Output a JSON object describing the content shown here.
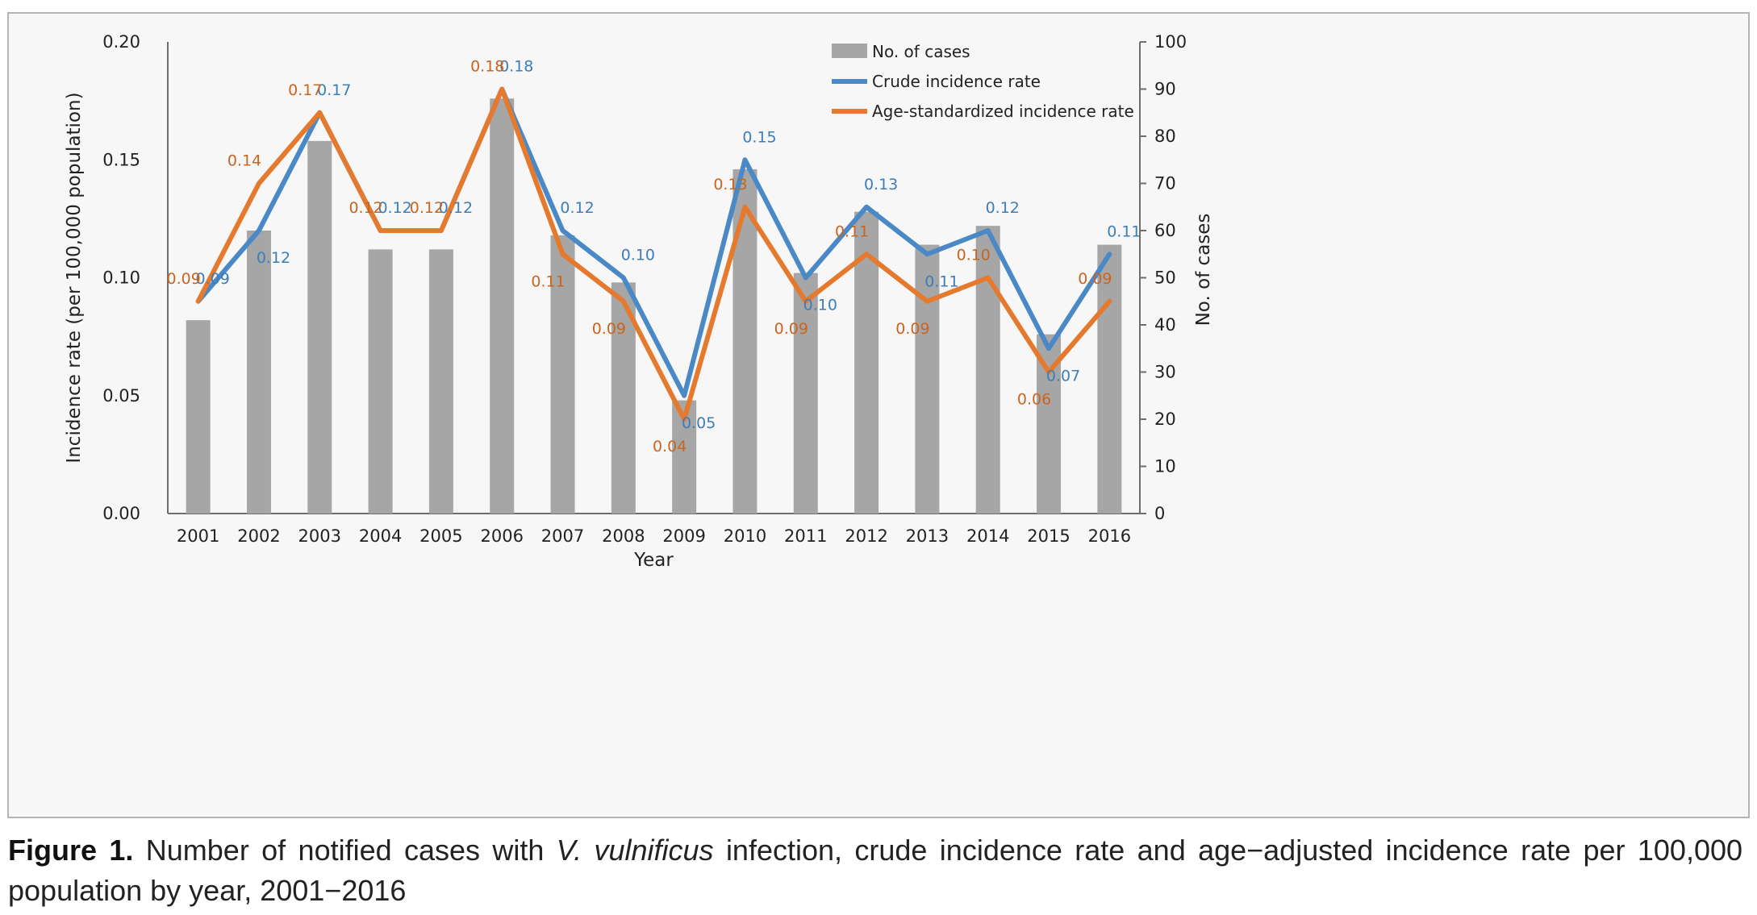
{
  "chart_data": {
    "type": "bar",
    "categories": [
      "2001",
      "2002",
      "2003",
      "2004",
      "2005",
      "2006",
      "2007",
      "2008",
      "2009",
      "2010",
      "2011",
      "2012",
      "2013",
      "2014",
      "2015",
      "2016"
    ],
    "series": [
      {
        "name": "No. of cases",
        "type": "bar",
        "axis": "right",
        "color": "#a6a6a6",
        "values": [
          41,
          60,
          79,
          56,
          56,
          88,
          59,
          49,
          24,
          73,
          51,
          64,
          57,
          61,
          38,
          57
        ]
      },
      {
        "name": "Crude incidence rate",
        "type": "line",
        "axis": "left",
        "color": "#4a89c5",
        "values": [
          0.09,
          0.12,
          0.17,
          0.12,
          0.12,
          0.18,
          0.12,
          0.1,
          0.05,
          0.15,
          0.1,
          0.13,
          0.11,
          0.12,
          0.07,
          0.11
        ],
        "labels": [
          "0.09",
          "0.12",
          "0.17",
          "0.12",
          "0.12",
          "0.18",
          "0.12",
          "0.10",
          "0.05",
          "0.15",
          "0.10",
          "0.13",
          "0.11",
          "0.12",
          "0.07",
          "0.11"
        ]
      },
      {
        "name": "Age-standardized  incidence rate",
        "type": "line",
        "axis": "left",
        "color": "#e57a2e",
        "values": [
          0.09,
          0.14,
          0.17,
          0.12,
          0.12,
          0.18,
          0.11,
          0.09,
          0.04,
          0.13,
          0.09,
          0.11,
          0.09,
          0.1,
          0.06,
          0.09
        ],
        "labels": [
          "0.09",
          "0.14",
          "0.17",
          "0.12",
          "0.12",
          "0.18",
          "0.11",
          "0.09",
          "0.04",
          "0.13",
          "0.09",
          "0.11",
          "0.09",
          "0.10",
          "0.06",
          "0.09"
        ]
      }
    ],
    "xlabel": "Year",
    "ylabel": "Incidence rate (per 100,000 population)",
    "y2label": "No. of cases",
    "ylim": [
      0,
      0.2
    ],
    "y2lim": [
      0,
      100
    ],
    "yticks": [
      "0.00",
      "0.05",
      "0.10",
      "0.15",
      "0.20"
    ],
    "y2ticks": [
      "0",
      "10",
      "20",
      "30",
      "40",
      "50",
      "60",
      "70",
      "80",
      "90",
      "100"
    ],
    "legend_position": "top-right",
    "grid": false
  },
  "caption": {
    "label": "Figure 1.",
    "text_before": "Number of notified cases with",
    "species": "V. vulnificus",
    "text_after": "infection, crude incidence rate and age−adjusted incidence rate per 100,000 population by year, 2001−2016"
  }
}
